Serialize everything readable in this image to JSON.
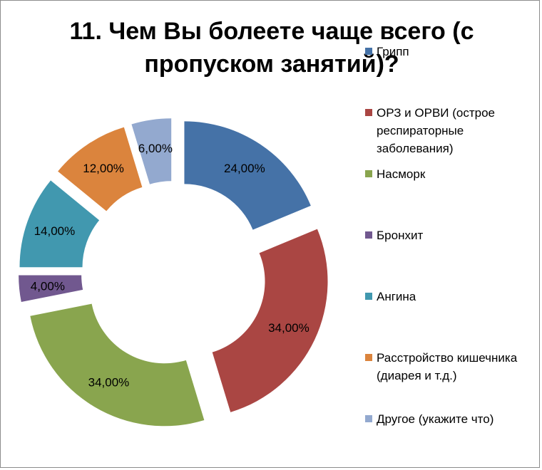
{
  "chart_data": {
    "type": "pie",
    "title": "11. Чем Вы болеете чаще всего (с пропуском занятий)?",
    "categories": [
      "Грипп",
      "ОРЗ и ОРВИ (острое респираторные заболевания)",
      "Насморк",
      "Бронхит",
      "Ангина",
      "Расстройство кишечника (диарея и т.д.)",
      "Другое (укажите что)"
    ],
    "values": [
      24,
      34,
      34,
      4,
      14,
      12,
      6
    ],
    "data_labels": [
      "24,00%",
      "34,00%",
      "34,00%",
      "4,00%",
      "14,00%",
      "12,00%",
      "6,00%"
    ],
    "colors": [
      "#4572A7",
      "#AA4643",
      "#89A54E",
      "#71588F",
      "#4198AF",
      "#DB843D",
      "#93A9CF"
    ],
    "legend_position": "right",
    "style": "exploded doughnut"
  }
}
